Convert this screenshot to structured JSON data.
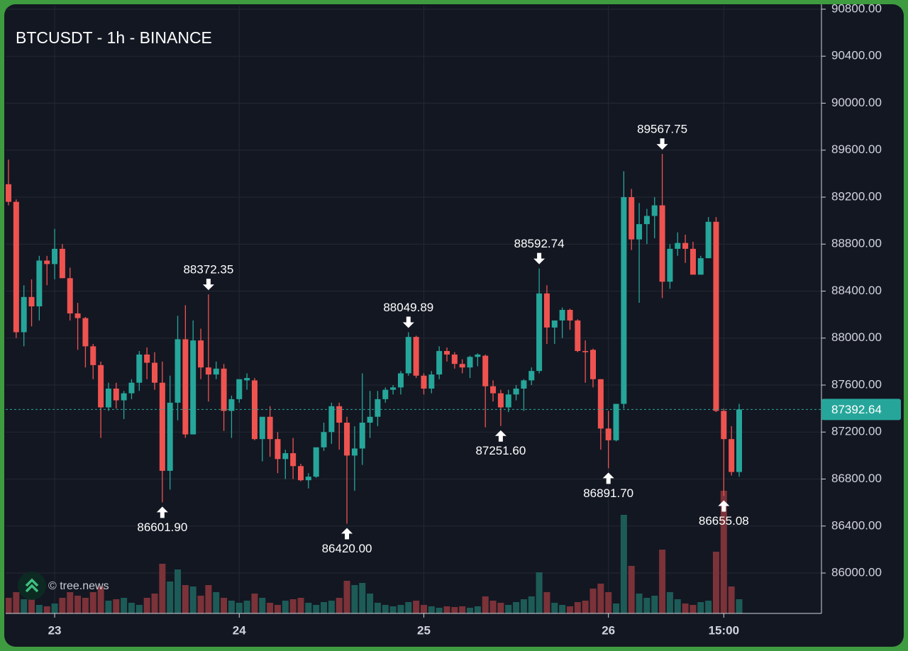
{
  "chart_data": {
    "type": "candlestick",
    "title": "BTCUSDT - 1h - BINANCE",
    "watermark": "© tree.news",
    "categories": [
      null,
      null,
      null,
      null,
      null,
      null,
      "23",
      null,
      null,
      null,
      null,
      null,
      null,
      null,
      null,
      null,
      null,
      null,
      null,
      null,
      null,
      null,
      null,
      null,
      null,
      null,
      null,
      null,
      null,
      null,
      "24",
      null,
      null,
      null,
      null,
      null,
      null,
      null,
      null,
      null,
      null,
      null,
      null,
      null,
      null,
      null,
      null,
      null,
      null,
      null,
      null,
      null,
      null,
      null,
      "25",
      null,
      null,
      null,
      null,
      null,
      null,
      null,
      null,
      null,
      null,
      null,
      null,
      null,
      null,
      null,
      null,
      null,
      null,
      null,
      null,
      null,
      null,
      null,
      "26",
      null,
      null,
      null,
      null,
      null,
      null,
      null,
      null,
      null,
      null,
      null,
      null,
      null,
      null,
      "15:00",
      null,
      null
    ],
    "open": [
      89310,
      89160,
      88050,
      88350,
      88270,
      88660,
      88630,
      88760,
      88510,
      88210,
      88170,
      87930,
      87770,
      87410,
      87570,
      87470,
      87530,
      87620,
      87860,
      87790,
      87620,
      86870,
      87450,
      87990,
      87180,
      87980,
      87750,
      87690,
      87740,
      87380,
      87480,
      87640,
      87640,
      87140,
      87330,
      87140,
      86970,
      87020,
      86910,
      86790,
      86820,
      87070,
      87200,
      87420,
      87280,
      87000,
      87060,
      87280,
      87330,
      87480,
      87560,
      87580,
      87700,
      88010,
      87680,
      87570,
      87690,
      87890,
      87860,
      87780,
      87750,
      87840,
      87850,
      87590,
      87530,
      87410,
      87520,
      87570,
      87640,
      87720,
      88380,
      88090,
      88150,
      88240,
      88150,
      87890,
      87900,
      87650,
      87230,
      87130,
      87440,
      89200,
      88840,
      88970,
      89040,
      89130,
      88480,
      88760,
      88810,
      88760,
      88540,
      88680,
      88990,
      87380,
      87140,
      86860
    ],
    "high": [
      89520,
      89180,
      88450,
      88500,
      88700,
      88700,
      88930,
      88800,
      88600,
      88300,
      88180,
      87950,
      87800,
      87620,
      87620,
      87550,
      87650,
      87890,
      87920,
      87880,
      87800,
      87680,
      88190,
      88280,
      88150,
      88080,
      88372.35,
      87800,
      87780,
      87510,
      87640,
      87700,
      87660,
      87300,
      87420,
      87200,
      87050,
      87150,
      86930,
      86850,
      87060,
      87280,
      87450,
      87450,
      87330,
      87250,
      87700,
      87550,
      87550,
      87580,
      87600,
      87720,
      88049.89,
      88020,
      87700,
      87720,
      87930,
      87920,
      87880,
      87820,
      87850,
      87870,
      87860,
      87640,
      87560,
      87560,
      87600,
      87650,
      87750,
      88592.74,
      88450,
      88150,
      88260,
      88250,
      88160,
      87980,
      87910,
      87650,
      87380,
      87430,
      89420,
      89270,
      89150,
      89100,
      89200,
      89567.75,
      88800,
      88900,
      88880,
      88820,
      88700,
      89030,
      89030,
      87400,
      87250,
      87440
    ],
    "low": [
      89130,
      88000,
      87930,
      88100,
      88150,
      88450,
      88500,
      88510,
      88150,
      87900,
      87750,
      87650,
      87150,
      87380,
      87400,
      87310,
      87480,
      87550,
      87650,
      87560,
      86601.9,
      86710,
      87300,
      87150,
      87180,
      87650,
      87460,
      87650,
      87210,
      87150,
      87450,
      87560,
      87130,
      86950,
      86990,
      86850,
      86800,
      86800,
      86780,
      86720,
      86810,
      87040,
      87100,
      87050,
      86420,
      86700,
      86920,
      87150,
      87250,
      87450,
      87520,
      87520,
      87680,
      87660,
      87520,
      87530,
      87650,
      87800,
      87740,
      87700,
      87660,
      87760,
      87240,
      87460,
      87251.6,
      87370,
      87470,
      87380,
      87600,
      87700,
      87950,
      87950,
      88000,
      88070,
      87880,
      87620,
      87580,
      87050,
      86891.7,
      87120,
      87400,
      88750,
      88300,
      88800,
      88850,
      88340,
      88420,
      88700,
      88640,
      88540,
      88540,
      88680,
      87370,
      86655.08,
      86830,
      86820
    ],
    "close": [
      89160,
      88050,
      88350,
      88270,
      88660,
      88630,
      88760,
      88510,
      88210,
      88170,
      87930,
      87770,
      87410,
      87570,
      87470,
      87530,
      87620,
      87860,
      87790,
      87620,
      86870,
      87450,
      87990,
      87180,
      87980,
      87750,
      87690,
      87740,
      87380,
      87480,
      87650,
      87660,
      87140,
      87330,
      87140,
      86970,
      87020,
      86910,
      86790,
      86820,
      87070,
      87200,
      87420,
      87280,
      87000,
      87060,
      87280,
      87330,
      87480,
      87560,
      87580,
      87700,
      88010,
      87680,
      87570,
      87690,
      87890,
      87860,
      87780,
      87750,
      87840,
      87860,
      87590,
      87530,
      87410,
      87520,
      87570,
      87640,
      87720,
      88380,
      88090,
      88150,
      88240,
      88150,
      87890,
      87880,
      87650,
      87230,
      87130,
      87440,
      89200,
      88840,
      88970,
      89040,
      89130,
      88480,
      88760,
      88810,
      88760,
      88540,
      88680,
      88990,
      87380,
      87140,
      86860,
      87392.64
    ],
    "volume": [
      22,
      30,
      20,
      25,
      12,
      10,
      14,
      22,
      30,
      25,
      22,
      30,
      38,
      18,
      20,
      22,
      15,
      12,
      22,
      28,
      70,
      45,
      62,
      40,
      38,
      25,
      40,
      30,
      22,
      18,
      15,
      18,
      28,
      22,
      15,
      12,
      18,
      20,
      22,
      15,
      12,
      16,
      18,
      22,
      46,
      40,
      43,
      28,
      15,
      12,
      10,
      12,
      16,
      18,
      12,
      10,
      8,
      10,
      9,
      10,
      8,
      10,
      24,
      18,
      15,
      12,
      16,
      20,
      24,
      58,
      30,
      15,
      12,
      10,
      16,
      18,
      35,
      42,
      30,
      14,
      139,
      67,
      28,
      22,
      25,
      90,
      30,
      20,
      14,
      12,
      16,
      18,
      87,
      173,
      38,
      20
    ],
    "up_color": "#26a69a",
    "down_color": "#ef5350",
    "volume_up_color": "#1d5b57",
    "volume_down_color": "#7b3238",
    "ylim": [
      85656,
      90830
    ],
    "yticks": [
      {
        "value": 86000,
        "label": "86000.00"
      },
      {
        "value": 86400,
        "label": "86400.00"
      },
      {
        "value": 86800,
        "label": "86800.00"
      },
      {
        "value": 87200,
        "label": "87200.00"
      },
      {
        "value": 87600,
        "label": "87600.00"
      },
      {
        "value": 88000,
        "label": "88000.00"
      },
      {
        "value": 88400,
        "label": "88400.00"
      },
      {
        "value": 88800,
        "label": "88800.00"
      },
      {
        "value": 89200,
        "label": "89200.00"
      },
      {
        "value": 89600,
        "label": "89600.00"
      },
      {
        "value": 90000,
        "label": "90000.00"
      },
      {
        "value": 90400,
        "label": "90400.00"
      },
      {
        "value": 90800,
        "label": "90800.00"
      }
    ],
    "grid": true,
    "last_price": 87392.64,
    "annotations": [
      {
        "index": 20,
        "position": "below",
        "label": "86601.90"
      },
      {
        "index": 26,
        "position": "above",
        "label": "88372.35"
      },
      {
        "index": 44,
        "position": "below",
        "label": "86420.00"
      },
      {
        "index": 52,
        "position": "above",
        "label": "88049.89"
      },
      {
        "index": 64,
        "position": "below",
        "label": "87251.60"
      },
      {
        "index": 69,
        "position": "above",
        "label": "88592.74"
      },
      {
        "index": 78,
        "position": "below",
        "label": "86891.70"
      },
      {
        "index": 85,
        "position": "above",
        "label": "89567.75"
      },
      {
        "index": 93,
        "position": "below",
        "label": "86655.08"
      }
    ]
  }
}
